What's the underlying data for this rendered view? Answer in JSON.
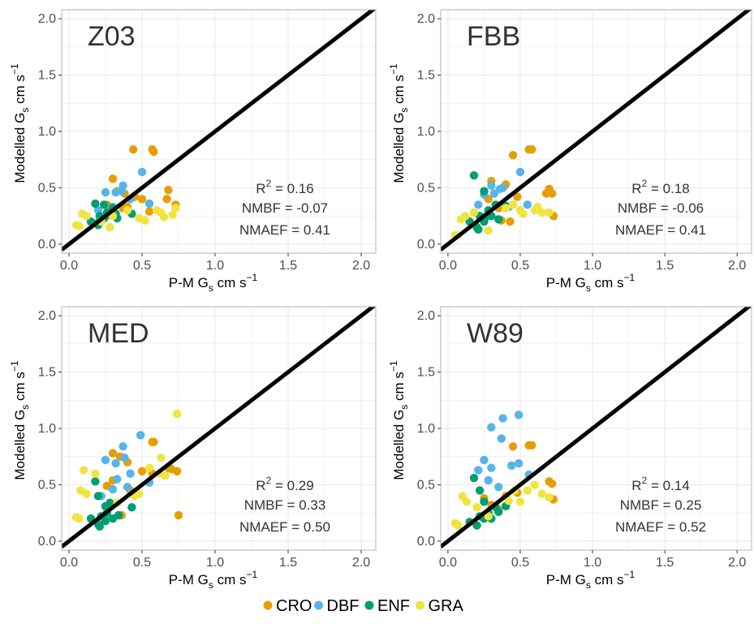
{
  "colors": {
    "CRO": "#E69F00",
    "DBF": "#56B4E9",
    "ENF": "#009E73",
    "GRA": "#F0E442",
    "one_to_one_line": "#000000",
    "grid": "#ebebeb",
    "panel_border": "#b3b3b3"
  },
  "legend": [
    {
      "key": "CRO",
      "label": "CRO"
    },
    {
      "key": "DBF",
      "label": "DBF"
    },
    {
      "key": "ENF",
      "label": "ENF"
    },
    {
      "key": "GRA",
      "label": "GRA"
    }
  ],
  "stat_labels": {
    "r2": "R²",
    "nmbf": "NMBF =",
    "nmaef": "NMAEF ="
  },
  "chart_data": [
    {
      "type": "scatter",
      "title": "Z03",
      "xlabel": "P-M Gs cm s⁻¹",
      "ylabel": "Modelled Gs cm s⁻¹",
      "xlim": [
        -0.05,
        2.1
      ],
      "ylim": [
        -0.08,
        2.08
      ],
      "xticks": [
        "0.0",
        "0.5",
        "1.0",
        "1.5",
        "2.0"
      ],
      "yticks": [
        "0.0",
        "0.5",
        "1.0",
        "1.5",
        "2.0"
      ],
      "grid": true,
      "reference_line": "1:1",
      "stats": {
        "r2": "0.16",
        "nmbf": "-0.07",
        "nmaef": "0.41"
      },
      "series": [
        {
          "name": "CRO",
          "points": [
            [
              0.44,
              0.84
            ],
            [
              0.57,
              0.84
            ],
            [
              0.58,
              0.82
            ],
            [
              0.3,
              0.58
            ],
            [
              0.33,
              0.47
            ],
            [
              0.38,
              0.45
            ],
            [
              0.45,
              0.42
            ],
            [
              0.5,
              0.4
            ],
            [
              0.68,
              0.48
            ],
            [
              0.67,
              0.4
            ],
            [
              0.73,
              0.35
            ],
            [
              0.4,
              0.33
            ],
            [
              0.37,
              0.32
            ],
            [
              0.27,
              0.3
            ],
            [
              0.55,
              0.29
            ],
            [
              0.26,
              0.35
            ]
          ]
        },
        {
          "name": "DBF",
          "points": [
            [
              0.5,
              0.64
            ],
            [
              0.37,
              0.52
            ],
            [
              0.32,
              0.46
            ],
            [
              0.36,
              0.47
            ],
            [
              0.25,
              0.46
            ],
            [
              0.42,
              0.4
            ],
            [
              0.55,
              0.36
            ],
            [
              0.2,
              0.3
            ],
            [
              0.3,
              0.33
            ]
          ]
        },
        {
          "name": "ENF",
          "points": [
            [
              0.18,
              0.36
            ],
            [
              0.24,
              0.35
            ],
            [
              0.3,
              0.32
            ],
            [
              0.26,
              0.28
            ],
            [
              0.21,
              0.25
            ],
            [
              0.32,
              0.27
            ],
            [
              0.23,
              0.22
            ],
            [
              0.15,
              0.2
            ],
            [
              0.2,
              0.19
            ],
            [
              0.24,
              0.23
            ],
            [
              0.33,
              0.23
            ],
            [
              0.2,
              0.17
            ],
            [
              0.28,
              0.26
            ],
            [
              0.43,
              0.27
            ]
          ]
        },
        {
          "name": "GRA",
          "points": [
            [
              0.09,
              0.27
            ],
            [
              0.12,
              0.25
            ],
            [
              0.05,
              0.17
            ],
            [
              0.07,
              0.16
            ],
            [
              0.28,
              0.15
            ],
            [
              0.22,
              0.2
            ],
            [
              0.48,
              0.23
            ],
            [
              0.52,
              0.21
            ],
            [
              0.63,
              0.28
            ],
            [
              0.65,
              0.24
            ],
            [
              0.71,
              0.26
            ],
            [
              0.73,
              0.32
            ],
            [
              0.6,
              0.3
            ],
            [
              0.3,
              0.25
            ],
            [
              0.4,
              0.3
            ]
          ]
        }
      ]
    },
    {
      "type": "scatter",
      "title": "FBB",
      "xlabel": "P-M Gs cm s⁻¹",
      "ylabel": "Modelled Gs cm s⁻¹",
      "xlim": [
        -0.05,
        2.1
      ],
      "ylim": [
        -0.08,
        2.08
      ],
      "xticks": [
        "0.0",
        "0.5",
        "1.0",
        "1.5",
        "2.0"
      ],
      "yticks": [
        "0.0",
        "0.5",
        "1.0",
        "1.5",
        "2.0"
      ],
      "grid": true,
      "reference_line": "1:1",
      "stats": {
        "r2": "0.18",
        "nmbf": "-0.06",
        "nmaef": "0.41"
      },
      "series": [
        {
          "name": "CRO",
          "points": [
            [
              0.58,
              0.84
            ],
            [
              0.56,
              0.84
            ],
            [
              0.45,
              0.79
            ],
            [
              0.3,
              0.56
            ],
            [
              0.4,
              0.53
            ],
            [
              0.48,
              0.42
            ],
            [
              0.7,
              0.49
            ],
            [
              0.68,
              0.45
            ],
            [
              0.72,
              0.45
            ],
            [
              0.73,
              0.25
            ],
            [
              0.37,
              0.21
            ],
            [
              0.43,
              0.2
            ],
            [
              0.35,
              0.32
            ],
            [
              0.28,
              0.4
            ]
          ]
        },
        {
          "name": "DBF",
          "points": [
            [
              0.5,
              0.64
            ],
            [
              0.3,
              0.52
            ],
            [
              0.36,
              0.49
            ],
            [
              0.38,
              0.5
            ],
            [
              0.25,
              0.44
            ],
            [
              0.55,
              0.35
            ],
            [
              0.42,
              0.33
            ],
            [
              0.21,
              0.35
            ],
            [
              0.32,
              0.45
            ]
          ]
        },
        {
          "name": "ENF",
          "points": [
            [
              0.18,
              0.61
            ],
            [
              0.25,
              0.47
            ],
            [
              0.33,
              0.35
            ],
            [
              0.28,
              0.3
            ],
            [
              0.22,
              0.25
            ],
            [
              0.3,
              0.25
            ],
            [
              0.25,
              0.2
            ],
            [
              0.15,
              0.2
            ],
            [
              0.2,
              0.15
            ],
            [
              0.21,
              0.13
            ],
            [
              0.4,
              0.34
            ],
            [
              0.26,
              0.24
            ],
            [
              0.35,
              0.22
            ]
          ]
        },
        {
          "name": "GRA",
          "points": [
            [
              0.05,
              0.08
            ],
            [
              0.07,
              0.08
            ],
            [
              0.09,
              0.22
            ],
            [
              0.12,
              0.25
            ],
            [
              0.18,
              0.28
            ],
            [
              0.28,
              0.12
            ],
            [
              0.5,
              0.3
            ],
            [
              0.52,
              0.27
            ],
            [
              0.6,
              0.3
            ],
            [
              0.62,
              0.33
            ],
            [
              0.65,
              0.28
            ],
            [
              0.7,
              0.28
            ],
            [
              0.45,
              0.35
            ],
            [
              0.4,
              0.32
            ]
          ]
        }
      ]
    },
    {
      "type": "scatter",
      "title": "MED",
      "xlabel": "P-M Gs cm s⁻¹",
      "ylabel": "Modelled Gs cm s⁻¹",
      "xlim": [
        -0.05,
        2.1
      ],
      "ylim": [
        -0.08,
        2.08
      ],
      "xticks": [
        "0.0",
        "0.5",
        "1.0",
        "1.5",
        "2.0"
      ],
      "yticks": [
        "0.0",
        "0.5",
        "1.0",
        "1.5",
        "2.0"
      ],
      "grid": true,
      "reference_line": "1:1",
      "stats": {
        "r2": "0.29",
        "nmbf": "0.33",
        "nmaef": "0.50"
      },
      "series": [
        {
          "name": "CRO",
          "points": [
            [
              0.57,
              0.88
            ],
            [
              0.58,
              0.88
            ],
            [
              0.3,
              0.78
            ],
            [
              0.35,
              0.75
            ],
            [
              0.4,
              0.7
            ],
            [
              0.5,
              0.62
            ],
            [
              0.57,
              0.6
            ],
            [
              0.68,
              0.65
            ],
            [
              0.7,
              0.64
            ],
            [
              0.74,
              0.62
            ],
            [
              0.75,
              0.23
            ],
            [
              0.36,
              0.23
            ],
            [
              0.42,
              0.45
            ],
            [
              0.3,
              0.54
            ],
            [
              0.26,
              0.49
            ]
          ]
        },
        {
          "name": "DBF",
          "points": [
            [
              0.49,
              0.94
            ],
            [
              0.37,
              0.84
            ],
            [
              0.38,
              0.74
            ],
            [
              0.32,
              0.69
            ],
            [
              0.25,
              0.72
            ],
            [
              0.42,
              0.6
            ],
            [
              0.55,
              0.52
            ],
            [
              0.3,
              0.46
            ],
            [
              0.4,
              0.48
            ],
            [
              0.22,
              0.4
            ],
            [
              0.33,
              0.55
            ]
          ]
        },
        {
          "name": "ENF",
          "points": [
            [
              0.18,
              0.53
            ],
            [
              0.2,
              0.4
            ],
            [
              0.25,
              0.31
            ],
            [
              0.26,
              0.25
            ],
            [
              0.22,
              0.22
            ],
            [
              0.3,
              0.2
            ],
            [
              0.15,
              0.2
            ],
            [
              0.2,
              0.15
            ],
            [
              0.21,
              0.13
            ],
            [
              0.25,
              0.18
            ],
            [
              0.34,
              0.23
            ],
            [
              0.43,
              0.3
            ],
            [
              0.28,
              0.34
            ]
          ]
        },
        {
          "name": "GRA",
          "points": [
            [
              0.74,
              1.13
            ],
            [
              0.1,
              0.63
            ],
            [
              0.18,
              0.6
            ],
            [
              0.08,
              0.45
            ],
            [
              0.12,
              0.42
            ],
            [
              0.05,
              0.21
            ],
            [
              0.07,
              0.2
            ],
            [
              0.63,
              0.74
            ],
            [
              0.55,
              0.65
            ],
            [
              0.62,
              0.6
            ],
            [
              0.66,
              0.58
            ],
            [
              0.45,
              0.4
            ],
            [
              0.48,
              0.42
            ],
            [
              0.33,
              0.34
            ]
          ]
        }
      ]
    },
    {
      "type": "scatter",
      "title": "W89",
      "xlabel": "P-M Gs cm s⁻¹",
      "ylabel": "Modelled Gs cm s⁻¹",
      "xlim": [
        -0.05,
        2.1
      ],
      "ylim": [
        -0.08,
        2.08
      ],
      "xticks": [
        "0.0",
        "0.5",
        "1.0",
        "1.5",
        "2.0"
      ],
      "yticks": [
        "0.0",
        "0.5",
        "1.0",
        "1.5",
        "2.0"
      ],
      "grid": true,
      "reference_line": "1:1",
      "stats": {
        "r2": "0.14",
        "nmbf": "0.25",
        "nmaef": "0.52"
      },
      "series": [
        {
          "name": "CRO",
          "points": [
            [
              0.58,
              0.85
            ],
            [
              0.56,
              0.85
            ],
            [
              0.45,
              0.84
            ],
            [
              0.7,
              0.53
            ],
            [
              0.72,
              0.51
            ],
            [
              0.73,
              0.37
            ],
            [
              0.48,
              0.43
            ],
            [
              0.4,
              0.4
            ],
            [
              0.3,
              0.32
            ],
            [
              0.25,
              0.38
            ],
            [
              0.35,
              0.28
            ]
          ]
        },
        {
          "name": "DBF",
          "points": [
            [
              0.49,
              1.12
            ],
            [
              0.38,
              1.09
            ],
            [
              0.3,
              1.01
            ],
            [
              0.37,
              0.91
            ],
            [
              0.25,
              0.72
            ],
            [
              0.21,
              0.63
            ],
            [
              0.3,
              0.65
            ],
            [
              0.44,
              0.67
            ],
            [
              0.49,
              0.69
            ],
            [
              0.56,
              0.59
            ],
            [
              0.28,
              0.54
            ],
            [
              0.35,
              0.48
            ]
          ]
        },
        {
          "name": "ENF",
          "points": [
            [
              0.18,
              0.56
            ],
            [
              0.22,
              0.45
            ],
            [
              0.25,
              0.35
            ],
            [
              0.33,
              0.3
            ],
            [
              0.28,
              0.25
            ],
            [
              0.22,
              0.22
            ],
            [
              0.3,
              0.2
            ],
            [
              0.15,
              0.17
            ],
            [
              0.2,
              0.14
            ],
            [
              0.25,
              0.2
            ],
            [
              0.35,
              0.26
            ],
            [
              0.4,
              0.31
            ]
          ]
        },
        {
          "name": "GRA",
          "points": [
            [
              0.05,
              0.16
            ],
            [
              0.07,
              0.14
            ],
            [
              0.1,
              0.4
            ],
            [
              0.13,
              0.35
            ],
            [
              0.2,
              0.3
            ],
            [
              0.28,
              0.22
            ],
            [
              0.5,
              0.35
            ],
            [
              0.55,
              0.45
            ],
            [
              0.6,
              0.5
            ],
            [
              0.65,
              0.42
            ],
            [
              0.7,
              0.39
            ],
            [
              0.42,
              0.36
            ],
            [
              0.46,
              0.45
            ]
          ]
        }
      ]
    }
  ]
}
